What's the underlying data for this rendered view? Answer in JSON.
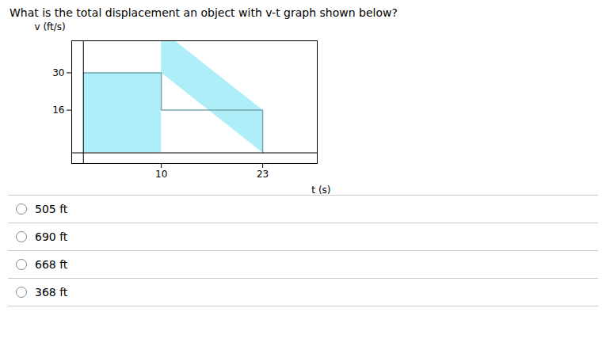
{
  "chart_data": {
    "type": "area",
    "title": "What is the total displacement an object with v-t graph shown below?",
    "xlabel": "t (s)",
    "ylabel": "v (ft/s)",
    "x": [
      0,
      10,
      10,
      23,
      23
    ],
    "values": [
      30,
      30,
      16,
      16,
      0
    ],
    "color": "#aeeef8",
    "xlim": [
      -1.5,
      30
    ],
    "ylim": [
      -4,
      42
    ],
    "xticks": [
      10,
      23
    ],
    "yticks": [
      16,
      30
    ],
    "grid": false,
    "annotations": [
      "505 ft",
      "690 ft",
      "668 ft",
      "368 ft"
    ]
  }
}
